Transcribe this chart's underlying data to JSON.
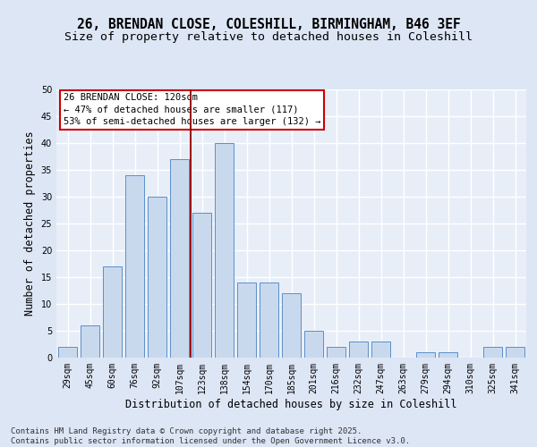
{
  "title_line1": "26, BRENDAN CLOSE, COLESHILL, BIRMINGHAM, B46 3EF",
  "title_line2": "Size of property relative to detached houses in Coleshill",
  "xlabel": "Distribution of detached houses by size in Coleshill",
  "ylabel": "Number of detached properties",
  "bar_labels": [
    "29sqm",
    "45sqm",
    "60sqm",
    "76sqm",
    "92sqm",
    "107sqm",
    "123sqm",
    "138sqm",
    "154sqm",
    "170sqm",
    "185sqm",
    "201sqm",
    "216sqm",
    "232sqm",
    "247sqm",
    "263sqm",
    "279sqm",
    "294sqm",
    "310sqm",
    "325sqm",
    "341sqm"
  ],
  "bar_values": [
    2,
    6,
    17,
    34,
    30,
    37,
    27,
    40,
    14,
    14,
    12,
    5,
    2,
    3,
    3,
    0,
    1,
    1,
    0,
    2,
    2
  ],
  "bar_color": "#c9d9ed",
  "bar_edge_color": "#5b8fc9",
  "bg_color": "#dde6f5",
  "plot_bg_color": "#e8eef8",
  "grid_color": "#ffffff",
  "vline_x": 5.5,
  "vline_color": "#990000",
  "annotation_text": "26 BRENDAN CLOSE: 120sqm\n← 47% of detached houses are smaller (117)\n53% of semi-detached houses are larger (132) →",
  "annotation_box_color": "#ffffff",
  "annotation_edge_color": "#cc0000",
  "ylim": [
    0,
    50
  ],
  "yticks": [
    0,
    5,
    10,
    15,
    20,
    25,
    30,
    35,
    40,
    45,
    50
  ],
  "footer_text": "Contains HM Land Registry data © Crown copyright and database right 2025.\nContains public sector information licensed under the Open Government Licence v3.0.",
  "title_fontsize": 10.5,
  "subtitle_fontsize": 9.5,
  "axis_label_fontsize": 8.5,
  "tick_fontsize": 7,
  "annotation_fontsize": 7.5,
  "footer_fontsize": 6.5
}
